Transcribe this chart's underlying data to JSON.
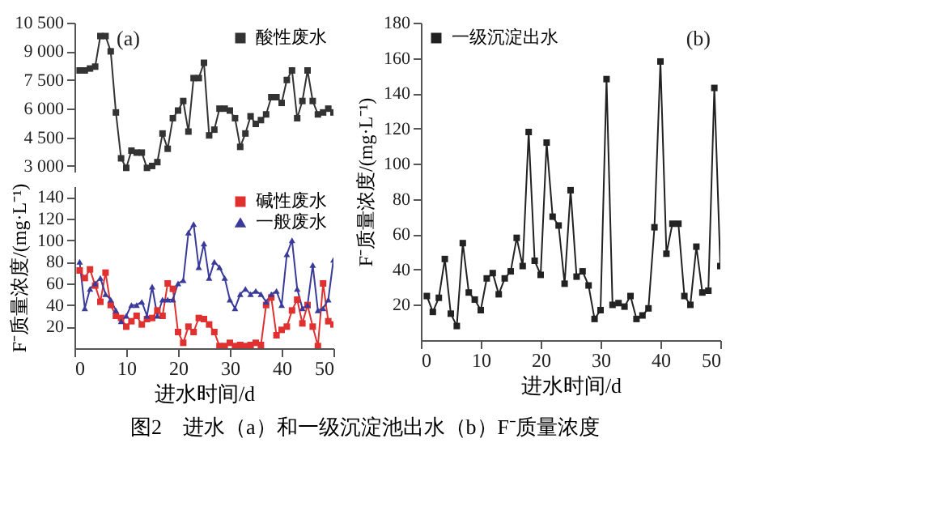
{
  "chart_data": [
    {
      "type": "line",
      "ylim": [
        2700,
        10500
      ],
      "yticks": [
        {
          "value": 3000,
          "label": "3 000"
        },
        {
          "value": 4500,
          "label": "4 500"
        },
        {
          "value": 6000,
          "label": "6 000"
        },
        {
          "value": 7500,
          "label": "7 500"
        },
        {
          "value": 9000,
          "label": "9 000"
        },
        {
          "value": 10500,
          "label": "10 500"
        }
      ],
      "tick_labels": "y",
      "legend": "top right",
      "annotations": [
        "(a)"
      ],
      "x": [
        1,
        2,
        3,
        4,
        5,
        6,
        7,
        8,
        9,
        10,
        11,
        12,
        13,
        14,
        15,
        16,
        17,
        18,
        19,
        20,
        21,
        22,
        23,
        24,
        25,
        26,
        27,
        28,
        29,
        30,
        31,
        32,
        33,
        34,
        35,
        36,
        37,
        38,
        39,
        40,
        41,
        42,
        43,
        44,
        45,
        46,
        47,
        48,
        49,
        50
      ],
      "series": [
        {
          "name": "酸性废水",
          "color": "#333333",
          "marker": "square",
          "values": [
            8000,
            8000,
            8100,
            8200,
            9800,
            9800,
            9000,
            5800,
            3400,
            2900,
            3800,
            3700,
            3700,
            2900,
            3000,
            3200,
            4700,
            3900,
            5500,
            5900,
            6400,
            4800,
            7600,
            7600,
            8400,
            4600,
            4900,
            6000,
            6000,
            5900,
            5500,
            4000,
            4700,
            5600,
            5200,
            5400,
            5700,
            6600,
            6600,
            6300,
            7500,
            8000,
            5500,
            6400,
            8000,
            6400,
            5700,
            5800,
            6000,
            5800
          ]
        }
      ]
    },
    {
      "type": "line",
      "xlim": [
        0,
        50
      ],
      "xticks": [
        0,
        10,
        20,
        30,
        40,
        50
      ],
      "ylim": [
        0,
        150
      ],
      "yticks": [
        20,
        40,
        60,
        80,
        100,
        120,
        140
      ],
      "xlabel": "进水时间/d",
      "ylabel": "F⁻质量浓度/(mg·L⁻¹)",
      "legend": "top right",
      "x": [
        1,
        2,
        3,
        4,
        5,
        6,
        7,
        8,
        9,
        10,
        11,
        12,
        13,
        14,
        15,
        16,
        17,
        18,
        19,
        20,
        21,
        22,
        23,
        24,
        25,
        26,
        27,
        28,
        29,
        30,
        31,
        32,
        33,
        34,
        35,
        36,
        37,
        38,
        39,
        40,
        41,
        42,
        43,
        44,
        45,
        46,
        47,
        48,
        49,
        50
      ],
      "series": [
        {
          "name": "碱性废水",
          "color": "#e03030",
          "marker": "square",
          "values": [
            72,
            65,
            73,
            58,
            43,
            70,
            40,
            30,
            28,
            20,
            25,
            30,
            22,
            27,
            28,
            35,
            30,
            60,
            55,
            15,
            5,
            20,
            15,
            28,
            27,
            22,
            15,
            2,
            2,
            5,
            2,
            3,
            2,
            3,
            5,
            3,
            40,
            47,
            12,
            17,
            20,
            35,
            45,
            23,
            40,
            20,
            2,
            60,
            25,
            22
          ]
        },
        {
          "name": "一般废水",
          "color": "#3a3a9a",
          "marker": "triangle",
          "values": [
            80,
            37,
            55,
            60,
            65,
            50,
            45,
            35,
            25,
            30,
            40,
            40,
            43,
            30,
            57,
            30,
            45,
            45,
            45,
            60,
            63,
            107,
            115,
            75,
            97,
            65,
            80,
            75,
            65,
            45,
            37,
            50,
            55,
            50,
            53,
            50,
            43,
            50,
            53,
            40,
            87,
            100,
            55,
            37,
            40,
            77,
            35,
            37,
            45,
            82
          ]
        }
      ]
    },
    {
      "type": "line",
      "xlim": [
        0,
        50
      ],
      "xticks": [
        0,
        10,
        20,
        30,
        40,
        50
      ],
      "ylim": [
        0,
        180
      ],
      "yticks": [
        20,
        40,
        60,
        80,
        100,
        120,
        140,
        160,
        180
      ],
      "xlabel": "进水时间/d",
      "ylabel": "F⁻质量浓度/(mg·L⁻¹)",
      "legend": "top left",
      "annotations": [
        "(b)",
        "图2　进水（a）和一级沉淀池出水（b）F⁻质量浓度"
      ],
      "x": [
        1,
        2,
        3,
        4,
        5,
        6,
        7,
        8,
        9,
        10,
        11,
        12,
        13,
        14,
        15,
        16,
        17,
        18,
        19,
        20,
        21,
        22,
        23,
        24,
        25,
        26,
        27,
        28,
        29,
        30,
        31,
        32,
        33,
        34,
        35,
        36,
        37,
        38,
        39,
        40,
        41,
        42,
        43,
        44,
        45,
        46,
        47,
        48,
        49,
        50
      ],
      "series": [
        {
          "name": "一级沉淀出水",
          "color": "#222222",
          "marker": "square",
          "values": [
            25,
            16,
            24,
            46,
            15,
            8,
            55,
            27,
            23,
            17,
            35,
            38,
            26,
            35,
            39,
            58,
            42,
            118,
            45,
            37,
            112,
            70,
            65,
            32,
            85,
            36,
            39,
            31,
            12,
            17,
            148,
            20,
            21,
            19,
            25,
            12,
            14,
            18,
            64,
            158,
            49,
            66,
            66,
            25,
            20,
            53,
            27,
            28,
            143,
            42
          ]
        }
      ]
    }
  ]
}
